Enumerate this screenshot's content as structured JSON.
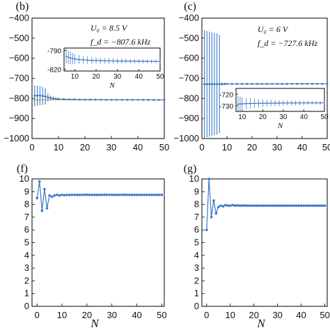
{
  "colors": {
    "series": "#3a78c9",
    "ref_line": "#c8a800",
    "axis": "#000000"
  },
  "chart_data": [
    {
      "panel_label": "(b)",
      "type": "line",
      "annotation": [
        "U₀ = 8.5 V",
        "f_d = −807.6 kHz"
      ],
      "ylim": [
        -1000,
        -400
      ],
      "yticks": [
        -400,
        -500,
        -600,
        -700,
        -800,
        -900,
        -1000
      ],
      "ytick_labels": [
        "−400",
        "−500",
        "−600",
        "−700",
        "−800",
        "−900",
        "−1000"
      ],
      "xlim": [
        0,
        50
      ],
      "xticks": [
        0,
        10,
        20,
        30,
        40,
        50
      ],
      "xtick_labels": [
        "0",
        "10",
        "20",
        "30",
        "40",
        "50"
      ],
      "xlabel": "",
      "reference_line": -807.6,
      "series": [
        {
          "x": [
            1,
            2,
            3,
            4,
            5,
            6,
            7,
            8,
            9,
            10,
            12,
            14,
            16,
            18,
            20,
            22,
            24,
            26,
            28,
            30,
            32,
            34,
            36,
            38,
            40,
            42,
            44,
            46,
            48,
            50
          ],
          "y": [
            -787,
            -786,
            -786,
            -788,
            -790,
            -795,
            -798,
            -800,
            -802,
            -803,
            -804,
            -805,
            -805,
            -806,
            -806,
            -806,
            -806,
            -806.5,
            -807,
            -807,
            -807,
            -807,
            -807,
            -807,
            -807,
            -807.2,
            -807.3,
            -807.4,
            -807.5,
            -807.6
          ],
          "err": [
            52,
            50,
            48,
            45,
            40,
            20,
            12,
            9,
            7,
            6,
            5,
            4,
            4,
            3,
            3,
            3,
            3,
            3,
            2,
            2,
            2,
            2,
            2,
            2,
            2,
            2,
            2,
            2,
            2,
            2
          ]
        }
      ],
      "inset": {
        "ylim": [
          -823,
          -786
        ],
        "yticks": [
          -790,
          -820
        ],
        "ytick_labels": [
          "-790",
          "-820"
        ],
        "xlim": [
          5,
          50
        ],
        "xticks": [
          10,
          20,
          30,
          40,
          50
        ],
        "xtick_labels": [
          "10",
          "20",
          "30",
          "40",
          "50"
        ],
        "xlabel": "N",
        "series": [
          {
            "x": [
              6,
              7,
              8,
              9,
              10,
              12,
              14,
              16,
              18,
              20,
              22,
              24,
              26,
              28,
              30,
              32,
              34,
              36,
              38,
              40,
              42,
              44,
              46,
              48,
              50
            ],
            "y": [
              -799,
              -801,
              -802,
              -803,
              -803.5,
              -804.5,
              -805,
              -805.5,
              -806,
              -806,
              -806.3,
              -806.5,
              -806.7,
              -806.8,
              -807,
              -807,
              -807.1,
              -807.2,
              -807.2,
              -807.3,
              -807.4,
              -807.4,
              -807.5,
              -807.5,
              -807.6
            ],
            "err": [
              12,
              11,
              10,
              9,
              8,
              7,
              6,
              6,
              5.5,
              5,
              5,
              4.5,
              4.5,
              4,
              4,
              4,
              3.8,
              3.5,
              3.5,
              3.2,
              3,
              3,
              3,
              2.8,
              2.5
            ]
          }
        ]
      }
    },
    {
      "panel_label": "(c)",
      "type": "line",
      "annotation": [
        "U₀ = 6 V",
        "f_d = −727.6 kHz"
      ],
      "ylim": [
        -1000,
        -400
      ],
      "yticks": [
        -400,
        -500,
        -600,
        -700,
        -800,
        -900,
        -1000
      ],
      "ytick_labels": [
        "−400",
        "−500",
        "−600",
        "−700",
        "−800",
        "−900",
        "−1000"
      ],
      "xlim": [
        0,
        50
      ],
      "xticks": [
        0,
        10,
        20,
        30,
        40,
        50
      ],
      "xtick_labels": [
        "0",
        "10",
        "20",
        "30",
        "40",
        "50"
      ],
      "xlabel": "",
      "reference_line": -727.6,
      "series": [
        {
          "x": [
            1,
            2,
            3,
            4,
            5,
            6,
            7,
            8,
            9,
            10,
            12,
            14,
            16,
            18,
            20,
            22,
            24,
            26,
            28,
            30,
            32,
            34,
            36,
            38,
            40,
            42,
            44,
            46,
            48,
            50
          ],
          "y": [
            -730,
            -729,
            -729,
            -729,
            -729,
            -728.5,
            -728.5,
            -728.5,
            -728,
            -728,
            -728,
            -728,
            -728,
            -728,
            -727.8,
            -727.8,
            -727.8,
            -727.7,
            -727.7,
            -727.7,
            -727.7,
            -727.6,
            -727.6,
            -727.6,
            -727.6,
            -727.6,
            -727.6,
            -727.6,
            -727.6,
            -727.6
          ],
          "err": [
            270,
            265,
            262,
            258,
            255,
            252,
            245,
            8,
            6,
            5,
            4,
            4,
            3,
            3,
            3,
            3,
            3,
            2,
            2,
            2,
            2,
            2,
            2,
            2,
            2,
            2,
            2,
            2,
            2,
            2
          ]
        }
      ],
      "inset": {
        "ylim": [
          -735,
          -715
        ],
        "yticks": [
          -720,
          -730
        ],
        "ytick_labels": [
          "-720",
          "-730"
        ],
        "xlim": [
          7,
          50
        ],
        "xticks": [
          10,
          20,
          30,
          40,
          50
        ],
        "xtick_labels": [
          "10",
          "20",
          "30",
          "40",
          "50"
        ],
        "xlabel": "N",
        "series": [
          {
            "x": [
              8,
              9,
              10,
              12,
              14,
              16,
              18,
              20,
              22,
              24,
              26,
              28,
              30,
              32,
              34,
              36,
              38,
              40,
              42,
              44,
              46,
              48,
              50
            ],
            "y": [
              -728.8,
              -728.5,
              -728.4,
              -728.2,
              -728.1,
              -728,
              -728,
              -727.9,
              -727.9,
              -727.8,
              -727.8,
              -727.8,
              -727.7,
              -727.7,
              -727.7,
              -727.7,
              -727.6,
              -727.6,
              -727.6,
              -727.6,
              -727.6,
              -727.6,
              -727.6
            ],
            "err": [
              7,
              6.5,
              6,
              5,
              4.5,
              4,
              3.5,
              3.3,
              3,
              2.8,
              2.6,
              2.5,
              2.3,
              2.2,
              2,
              2,
              1.9,
              1.8,
              1.7,
              1.6,
              1.5,
              1.5,
              1.4
            ]
          }
        ]
      }
    },
    {
      "panel_label": "(f)",
      "type": "line",
      "ylim": [
        0,
        10
      ],
      "yticks": [
        0,
        1,
        2,
        3,
        4,
        5,
        6,
        7,
        8,
        9,
        10
      ],
      "ytick_labels": [
        "0",
        "1",
        "2",
        "3",
        "4",
        "5",
        "6",
        "7",
        "8",
        "9",
        "10"
      ],
      "xlim": [
        -2,
        51
      ],
      "xticks": [
        0,
        10,
        20,
        30,
        40,
        50
      ],
      "xtick_labels": [
        "0",
        "10",
        "20",
        "30",
        "40",
        "50"
      ],
      "xlabel": "N",
      "series": [
        {
          "x": [
            0,
            1,
            2,
            3,
            4,
            5,
            6,
            7,
            8,
            9,
            10,
            11,
            12,
            13,
            14,
            15,
            16,
            17,
            18,
            19,
            20,
            21,
            22,
            23,
            24,
            25,
            26,
            27,
            28,
            29,
            30,
            31,
            32,
            33,
            34,
            35,
            36,
            37,
            38,
            39,
            40,
            41,
            42,
            43,
            44,
            45,
            46,
            47,
            48,
            49,
            50
          ],
          "y": [
            8.5,
            9.8,
            7.5,
            9.2,
            7.7,
            8.7,
            8.6,
            8.7,
            8.75,
            8.7,
            8.75,
            8.72,
            8.75,
            8.74,
            8.75,
            8.75,
            8.74,
            8.75,
            8.75,
            8.75,
            8.76,
            8.75,
            8.75,
            8.75,
            8.75,
            8.75,
            8.75,
            8.76,
            8.75,
            8.75,
            8.75,
            8.75,
            8.75,
            8.75,
            8.75,
            8.76,
            8.75,
            8.75,
            8.75,
            8.75,
            8.75,
            8.75,
            8.75,
            8.75,
            8.75,
            8.75,
            8.75,
            8.75,
            8.75,
            8.75,
            8.75
          ]
        }
      ]
    },
    {
      "panel_label": "(g)",
      "type": "line",
      "ylim": [
        0,
        10
      ],
      "yticks": [
        0,
        1,
        2,
        3,
        4,
        5,
        6,
        7,
        8,
        9,
        10
      ],
      "ytick_labels": [
        "0",
        "1",
        "2",
        "3",
        "4",
        "5",
        "6",
        "7",
        "8",
        "9",
        "10"
      ],
      "xlim": [
        -2,
        51
      ],
      "xticks": [
        0,
        10,
        20,
        30,
        40,
        50
      ],
      "xtick_labels": [
        "0",
        "10",
        "20",
        "30",
        "40",
        "50"
      ],
      "xlabel": "N",
      "series": [
        {
          "x": [
            0,
            1,
            2,
            3,
            4,
            5,
            6,
            7,
            8,
            9,
            10,
            11,
            12,
            13,
            14,
            15,
            16,
            17,
            18,
            19,
            20,
            21,
            22,
            23,
            24,
            25,
            26,
            27,
            28,
            29,
            30,
            31,
            32,
            33,
            34,
            35,
            36,
            37,
            38,
            39,
            40,
            41,
            42,
            43,
            44,
            45,
            46,
            47,
            48,
            49,
            50
          ],
          "y": [
            6,
            10,
            7,
            8.3,
            7.3,
            7.8,
            7.9,
            7.85,
            7.95,
            7.9,
            7.9,
            7.95,
            7.9,
            7.92,
            7.9,
            7.9,
            7.92,
            7.9,
            7.9,
            7.9,
            7.91,
            7.9,
            7.9,
            7.9,
            7.9,
            7.9,
            7.9,
            7.9,
            7.9,
            7.9,
            7.9,
            7.9,
            7.9,
            7.9,
            7.9,
            7.9,
            7.9,
            7.9,
            7.9,
            7.9,
            7.9,
            7.9,
            7.9,
            7.9,
            7.9,
            7.9,
            7.9,
            7.9,
            7.9,
            7.9,
            7.9
          ]
        }
      ]
    }
  ]
}
